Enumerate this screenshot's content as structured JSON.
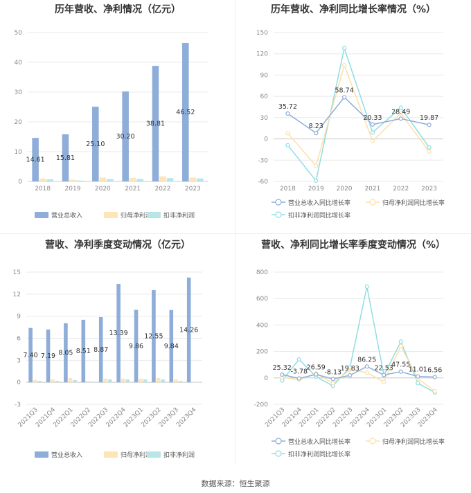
{
  "source": "数据来源：恒生聚源",
  "charts": [
    {
      "type": "bar",
      "title": "历年营收、净利情况（亿元）",
      "categories": [
        "2018",
        "2019",
        "2020",
        "2021",
        "2022",
        "2023"
      ],
      "ylim": [
        0,
        50
      ],
      "yticks": [
        0,
        10,
        20,
        30,
        40,
        50
      ],
      "series": [
        {
          "name": "营业总收入",
          "color": "#8eadd9",
          "values": [
            14.61,
            15.81,
            25.1,
            30.2,
            38.81,
            46.52
          ],
          "labels": [
            "14.61",
            "15.81",
            "25.10",
            "30.20",
            "38.81",
            "46.52"
          ]
        },
        {
          "name": "归母净利润",
          "color": "#fde5b8",
          "values": [
            1.0,
            0.6,
            1.3,
            1.2,
            1.7,
            1.3
          ]
        },
        {
          "name": "扣非净利润",
          "color": "#b7e6e8",
          "values": [
            0.7,
            0.3,
            0.8,
            0.8,
            1.1,
            1.0
          ]
        }
      ]
    },
    {
      "type": "line",
      "title": "历年营收、净利同比增长率情况（%）",
      "categories": [
        "2018",
        "2019",
        "2020",
        "2021",
        "2022",
        "2023"
      ],
      "ylim": [
        -60,
        150
      ],
      "yticks": [
        -60,
        -30,
        0,
        30,
        60,
        90,
        120,
        150
      ],
      "series": [
        {
          "name": "营业总收入同比增长率",
          "color": "#8eadd9",
          "values": [
            35.72,
            8.23,
            58.74,
            20.33,
            28.49,
            19.87
          ],
          "labels": [
            "35.72",
            "8.23",
            "58.74",
            "20.33",
            "28.49",
            "19.87"
          ]
        },
        {
          "name": "归母净利润同比增长率",
          "color": "#fde0a8",
          "values": [
            8,
            -38,
            104,
            -3,
            36,
            -18
          ]
        },
        {
          "name": "扣非净利润同比增长率",
          "color": "#8fdde3",
          "values": [
            -9,
            -59,
            128,
            9,
            44,
            -12
          ]
        }
      ]
    },
    {
      "type": "bar",
      "title": "营收、净利季度变动情况（亿元）",
      "categories": [
        "2021Q3",
        "2021Q4",
        "2022Q1",
        "2022Q2",
        "2022Q3",
        "2022Q4",
        "2023Q1",
        "2023Q2",
        "2023Q3",
        "2023Q4"
      ],
      "ylim": [
        -3,
        15
      ],
      "yticks": [
        -3,
        0,
        3,
        6,
        9,
        12,
        15
      ],
      "series": [
        {
          "name": "营业总收入",
          "color": "#8eadd9",
          "values": [
            7.4,
            7.19,
            8.05,
            8.51,
            8.87,
            13.39,
            9.86,
            12.55,
            9.84,
            14.26
          ],
          "labels": [
            "7.40",
            "7.19",
            "8.05",
            "8.51",
            "8.87",
            "13.39",
            "9.86",
            "12.55",
            "9.84",
            "14.26"
          ]
        },
        {
          "name": "归母净利润",
          "color": "#fde5b8",
          "values": [
            0.3,
            0.4,
            0.6,
            0.2,
            0.5,
            0.5,
            0.5,
            0.6,
            0.4,
            0.1
          ]
        },
        {
          "name": "扣非净利润",
          "color": "#b7e6e8",
          "values": [
            0.2,
            0.2,
            0.3,
            0.1,
            0.4,
            0.4,
            0.4,
            0.4,
            0.2,
            0.05
          ]
        }
      ]
    },
    {
      "type": "line",
      "title": "营收、净利同比增长率季度变动情况（%）",
      "categories": [
        "2021Q3",
        "2021Q4",
        "2022Q1",
        "2022Q2",
        "2022Q3",
        "2022Q4",
        "2023Q1",
        "2023Q2",
        "2023Q3",
        "2023Q4"
      ],
      "ylim": [
        -200,
        800
      ],
      "yticks": [
        -200,
        0,
        200,
        400,
        600,
        800
      ],
      "series": [
        {
          "name": "营业总收入同比增长率",
          "color": "#8eadd9",
          "values": [
            25.32,
            -3.78,
            26.59,
            -8.13,
            19.83,
            86.25,
            22.53,
            47.55,
            11.01,
            6.56
          ],
          "labels": [
            "25.32",
            "-3.78",
            "26.59",
            "-8.13",
            "19.83",
            "86.25",
            "22.53",
            "47.55",
            "11.01",
            "6.56"
          ]
        },
        {
          "name": "归母净利润同比增长率",
          "color": "#fde0a8",
          "values": [
            5,
            -15,
            35,
            -40,
            60,
            40,
            -30,
            240,
            -5,
            -100
          ]
        },
        {
          "name": "扣非净利润同比增长率",
          "color": "#8fdde3",
          "values": [
            -20,
            140,
            10,
            -60,
            80,
            690,
            20,
            275,
            -40,
            -110
          ]
        }
      ]
    }
  ]
}
